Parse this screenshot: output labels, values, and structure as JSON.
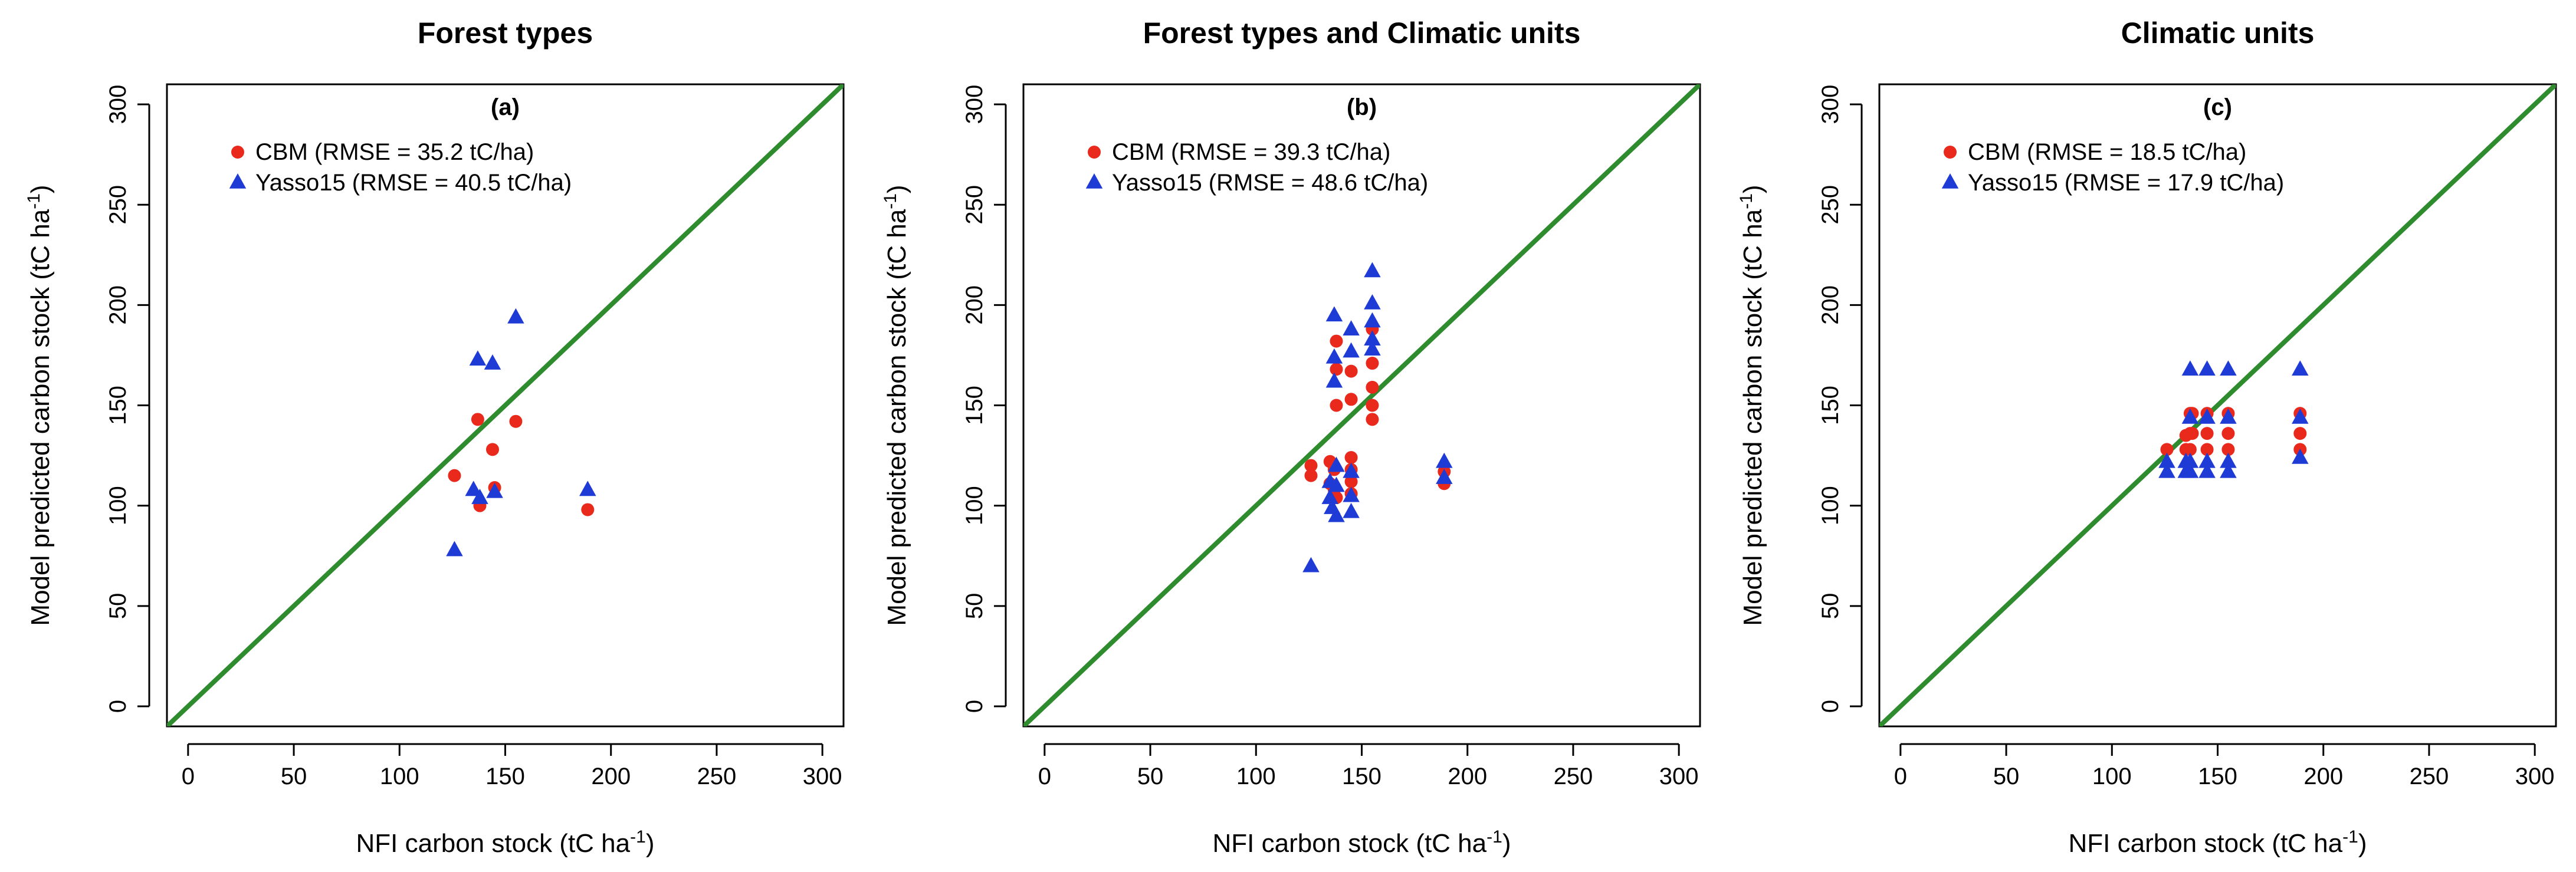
{
  "figure": {
    "xlabel_main": "NFI carbon stock (tC ha",
    "xlabel_sup": "-1",
    "xlabel_end": ")",
    "ylabel_main": "Model predicted carbon stock (tC ha",
    "ylabel_sup": "-1",
    "ylabel_end": ")"
  },
  "colors": {
    "cbm": "#e8291c",
    "yasso": "#1f3bd6",
    "line": "#2e8b2e"
  },
  "chart_data": [
    {
      "type": "scatter",
      "title": "Forest types",
      "panel_label": "(a)",
      "xlim": [
        -10,
        310
      ],
      "ylim": [
        -10,
        310
      ],
      "xticks": [
        0,
        50,
        100,
        150,
        200,
        250,
        300
      ],
      "yticks": [
        0,
        50,
        100,
        150,
        200,
        250,
        300
      ],
      "reference_line": "1:1",
      "legend_position": "top-left",
      "series": [
        {
          "name": "CBM (RMSE = 35.2 tC/ha)",
          "marker": "circle",
          "points": [
            [
              126,
              115
            ],
            [
              137,
              143
            ],
            [
              138,
              100
            ],
            [
              144,
              128
            ],
            [
              145,
              109
            ],
            [
              155,
              142
            ],
            [
              189,
              98
            ]
          ]
        },
        {
          "name": "Yasso15 (RMSE = 40.5 tC/ha)",
          "marker": "triangle",
          "points": [
            [
              126,
              78
            ],
            [
              135,
              108
            ],
            [
              137,
              173
            ],
            [
              138,
              104
            ],
            [
              144,
              171
            ],
            [
              145,
              107
            ],
            [
              155,
              194
            ],
            [
              189,
              108
            ]
          ]
        }
      ]
    },
    {
      "type": "scatter",
      "title": "Forest types and Climatic units",
      "panel_label": "(b)",
      "xlim": [
        -10,
        310
      ],
      "ylim": [
        -10,
        310
      ],
      "xticks": [
        0,
        50,
        100,
        150,
        200,
        250,
        300
      ],
      "yticks": [
        0,
        50,
        100,
        150,
        200,
        250,
        300
      ],
      "reference_line": "1:1",
      "legend_position": "top-left",
      "series": [
        {
          "name": "CBM (RMSE = 39.3 tC/ha)",
          "marker": "circle",
          "points": [
            [
              126,
              120
            ],
            [
              126,
              115
            ],
            [
              135,
              122
            ],
            [
              135,
              111
            ],
            [
              137,
              118
            ],
            [
              137,
              108
            ],
            [
              138,
              182
            ],
            [
              138,
              168
            ],
            [
              138,
              150
            ],
            [
              138,
              104
            ],
            [
              145,
              167
            ],
            [
              145,
              153
            ],
            [
              145,
              124
            ],
            [
              145,
              118
            ],
            [
              145,
              112
            ],
            [
              145,
              106
            ],
            [
              155,
              188
            ],
            [
              155,
              171
            ],
            [
              155,
              159
            ],
            [
              155,
              150
            ],
            [
              155,
              143
            ],
            [
              189,
              117
            ],
            [
              189,
              111
            ]
          ]
        },
        {
          "name": "Yasso15 (RMSE = 48.6 tC/ha)",
          "marker": "triangle",
          "points": [
            [
              126,
              70
            ],
            [
              135,
              112
            ],
            [
              135,
              104
            ],
            [
              136,
              99
            ],
            [
              137,
              195
            ],
            [
              137,
              174
            ],
            [
              137,
              162
            ],
            [
              138,
              120
            ],
            [
              138,
              110
            ],
            [
              138,
              95
            ],
            [
              145,
              188
            ],
            [
              145,
              177
            ],
            [
              145,
              117
            ],
            [
              145,
              105
            ],
            [
              145,
              97
            ],
            [
              155,
              217
            ],
            [
              155,
              201
            ],
            [
              155,
              192
            ],
            [
              155,
              183
            ],
            [
              155,
              178
            ],
            [
              189,
              122
            ],
            [
              189,
              114
            ]
          ]
        }
      ]
    },
    {
      "type": "scatter",
      "title": "Climatic units",
      "panel_label": "(c)",
      "xlim": [
        -10,
        310
      ],
      "ylim": [
        -10,
        310
      ],
      "xticks": [
        0,
        50,
        100,
        150,
        200,
        250,
        300
      ],
      "yticks": [
        0,
        50,
        100,
        150,
        200,
        250,
        300
      ],
      "reference_line": "1:1",
      "legend_position": "top-left",
      "series": [
        {
          "name": "CBM (RMSE = 18.5 tC/ha)",
          "marker": "circle",
          "points": [
            [
              126,
              128
            ],
            [
              135,
              128
            ],
            [
              135,
              135
            ],
            [
              137,
              146
            ],
            [
              137,
              136
            ],
            [
              137,
              128
            ],
            [
              138,
              146
            ],
            [
              138,
              136
            ],
            [
              145,
              146
            ],
            [
              145,
              136
            ],
            [
              145,
              128
            ],
            [
              155,
              146
            ],
            [
              155,
              136
            ],
            [
              155,
              128
            ],
            [
              189,
              146
            ],
            [
              189,
              136
            ],
            [
              189,
              128
            ]
          ]
        },
        {
          "name": "Yasso15 (RMSE = 17.9 tC/ha)",
          "marker": "triangle",
          "points": [
            [
              126,
              122
            ],
            [
              126,
              117
            ],
            [
              135,
              122
            ],
            [
              135,
              117
            ],
            [
              137,
              168
            ],
            [
              137,
              144
            ],
            [
              137,
              122
            ],
            [
              137,
              117
            ],
            [
              145,
              168
            ],
            [
              145,
              144
            ],
            [
              145,
              122
            ],
            [
              145,
              117
            ],
            [
              155,
              168
            ],
            [
              155,
              144
            ],
            [
              155,
              122
            ],
            [
              155,
              117
            ],
            [
              189,
              168
            ],
            [
              189,
              144
            ],
            [
              189,
              124
            ]
          ]
        }
      ]
    }
  ]
}
